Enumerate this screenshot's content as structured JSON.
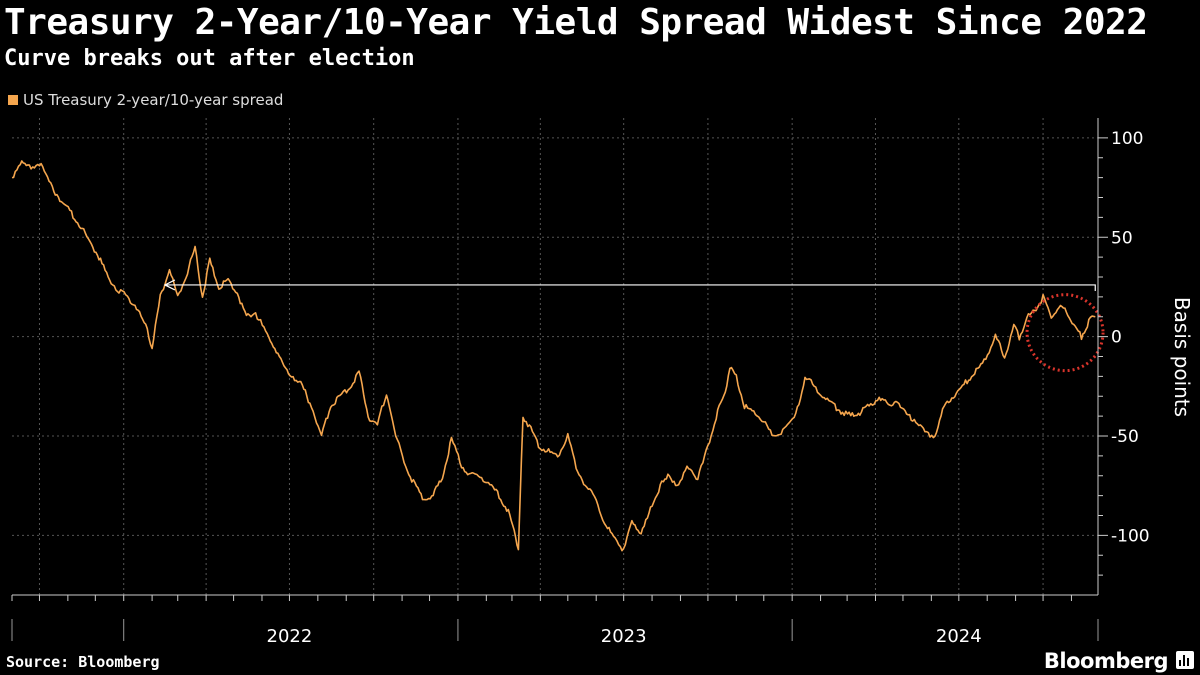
{
  "header": {
    "title": "Treasury 2-Year/10-Year Yield Spread Widest Since 2022",
    "subtitle": "Curve breaks out after election"
  },
  "footer": {
    "source": "Source: Bloomberg",
    "brand": "Bloomberg"
  },
  "colors": {
    "series": "#f5a64e",
    "background": "#000000",
    "grid": "#555555",
    "arrow": "#ffffff",
    "highlight_circle": "#d9342b"
  },
  "chart_data": {
    "type": "line",
    "legend_position": "top-left",
    "grid": true,
    "ylabel": "Basis points",
    "ylim": [
      -130,
      110
    ],
    "yticks": [
      100,
      50,
      0,
      -50,
      -100
    ],
    "xlim": [
      "2021-09-01",
      "2024-11-30"
    ],
    "x_tick_labels": [
      {
        "label": "2022",
        "date": "2022-07-01"
      },
      {
        "label": "2023",
        "date": "2023-07-01"
      },
      {
        "label": "2024",
        "date": "2024-07-01"
      }
    ],
    "series": [
      {
        "name": "US Treasury 2-year/10-year spread",
        "points": [
          [
            "2021-09-01",
            80
          ],
          [
            "2021-09-10",
            88
          ],
          [
            "2021-09-20",
            85
          ],
          [
            "2021-10-01",
            87
          ],
          [
            "2021-10-15",
            75
          ],
          [
            "2021-10-25",
            68
          ],
          [
            "2021-11-05",
            62
          ],
          [
            "2021-11-15",
            55
          ],
          [
            "2021-11-25",
            48
          ],
          [
            "2021-12-05",
            40
          ],
          [
            "2021-12-15",
            30
          ],
          [
            "2021-12-25",
            24
          ],
          [
            "2022-01-05",
            20
          ],
          [
            "2022-01-15",
            15
          ],
          [
            "2022-01-25",
            5
          ],
          [
            "2022-02-01",
            -5
          ],
          [
            "2022-02-10",
            20
          ],
          [
            "2022-02-20",
            35
          ],
          [
            "2022-03-01",
            20
          ],
          [
            "2022-03-10",
            30
          ],
          [
            "2022-03-20",
            45
          ],
          [
            "2022-03-28",
            20
          ],
          [
            "2022-04-05",
            38
          ],
          [
            "2022-04-15",
            25
          ],
          [
            "2022-04-25",
            28
          ],
          [
            "2022-05-05",
            22
          ],
          [
            "2022-05-15",
            10
          ],
          [
            "2022-05-25",
            12
          ],
          [
            "2022-06-05",
            2
          ],
          [
            "2022-06-15",
            -5
          ],
          [
            "2022-06-25",
            -15
          ],
          [
            "2022-07-05",
            -20
          ],
          [
            "2022-07-15",
            -25
          ],
          [
            "2022-07-25",
            -35
          ],
          [
            "2022-08-05",
            -50
          ],
          [
            "2022-08-15",
            -35
          ],
          [
            "2022-08-25",
            -30
          ],
          [
            "2022-09-05",
            -25
          ],
          [
            "2022-09-15",
            -18
          ],
          [
            "2022-09-25",
            -40
          ],
          [
            "2022-10-05",
            -45
          ],
          [
            "2022-10-15",
            -28
          ],
          [
            "2022-10-25",
            -50
          ],
          [
            "2022-11-05",
            -65
          ],
          [
            "2022-11-15",
            -75
          ],
          [
            "2022-11-25",
            -82
          ],
          [
            "2022-12-05",
            -80
          ],
          [
            "2022-12-15",
            -70
          ],
          [
            "2022-12-25",
            -52
          ],
          [
            "2023-01-05",
            -65
          ],
          [
            "2023-01-15",
            -70
          ],
          [
            "2023-01-25",
            -70
          ],
          [
            "2023-02-05",
            -75
          ],
          [
            "2023-02-15",
            -80
          ],
          [
            "2023-02-25",
            -88
          ],
          [
            "2023-03-05",
            -100
          ],
          [
            "2023-03-08",
            -108
          ],
          [
            "2023-03-13",
            -40
          ],
          [
            "2023-03-20",
            -45
          ],
          [
            "2023-03-30",
            -55
          ],
          [
            "2023-04-10",
            -58
          ],
          [
            "2023-04-20",
            -60
          ],
          [
            "2023-05-01",
            -50
          ],
          [
            "2023-05-10",
            -65
          ],
          [
            "2023-05-20",
            -75
          ],
          [
            "2023-06-01",
            -82
          ],
          [
            "2023-06-10",
            -95
          ],
          [
            "2023-06-20",
            -100
          ],
          [
            "2023-07-01",
            -108
          ],
          [
            "2023-07-10",
            -92
          ],
          [
            "2023-07-20",
            -100
          ],
          [
            "2023-08-01",
            -85
          ],
          [
            "2023-08-10",
            -75
          ],
          [
            "2023-08-20",
            -70
          ],
          [
            "2023-08-30",
            -75
          ],
          [
            "2023-09-10",
            -65
          ],
          [
            "2023-09-20",
            -72
          ],
          [
            "2023-10-01",
            -55
          ],
          [
            "2023-10-10",
            -40
          ],
          [
            "2023-10-20",
            -28
          ],
          [
            "2023-10-25",
            -15
          ],
          [
            "2023-11-01",
            -20
          ],
          [
            "2023-11-10",
            -35
          ],
          [
            "2023-11-20",
            -38
          ],
          [
            "2023-12-01",
            -42
          ],
          [
            "2023-12-10",
            -50
          ],
          [
            "2023-12-20",
            -48
          ],
          [
            "2024-01-05",
            -40
          ],
          [
            "2024-01-15",
            -20
          ],
          [
            "2024-01-25",
            -25
          ],
          [
            "2024-02-05",
            -30
          ],
          [
            "2024-02-15",
            -35
          ],
          [
            "2024-02-25",
            -38
          ],
          [
            "2024-03-05",
            -40
          ],
          [
            "2024-03-15",
            -38
          ],
          [
            "2024-03-25",
            -35
          ],
          [
            "2024-04-05",
            -30
          ],
          [
            "2024-04-15",
            -35
          ],
          [
            "2024-04-25",
            -32
          ],
          [
            "2024-05-05",
            -40
          ],
          [
            "2024-05-15",
            -42
          ],
          [
            "2024-05-25",
            -48
          ],
          [
            "2024-06-05",
            -50
          ],
          [
            "2024-06-15",
            -35
          ],
          [
            "2024-06-25",
            -30
          ],
          [
            "2024-07-05",
            -25
          ],
          [
            "2024-07-15",
            -20
          ],
          [
            "2024-07-25",
            -15
          ],
          [
            "2024-08-05",
            -5
          ],
          [
            "2024-08-10",
            0
          ],
          [
            "2024-08-20",
            -10
          ],
          [
            "2024-08-30",
            5
          ],
          [
            "2024-09-05",
            0
          ],
          [
            "2024-09-15",
            10
          ],
          [
            "2024-09-25",
            15
          ],
          [
            "2024-10-01",
            20
          ],
          [
            "2024-10-10",
            10
          ],
          [
            "2024-10-20",
            15
          ],
          [
            "2024-10-28",
            12
          ],
          [
            "2024-11-05",
            5
          ],
          [
            "2024-11-12",
            0
          ],
          [
            "2024-11-20",
            8
          ],
          [
            "2024-11-27",
            10
          ]
        ]
      }
    ],
    "annotations": [
      {
        "type": "arrow",
        "y": 26,
        "from_date": "2024-11-27",
        "to_date": "2022-02-15"
      },
      {
        "type": "circle",
        "center_date": "2024-10-25",
        "center_y": 2
      }
    ]
  }
}
